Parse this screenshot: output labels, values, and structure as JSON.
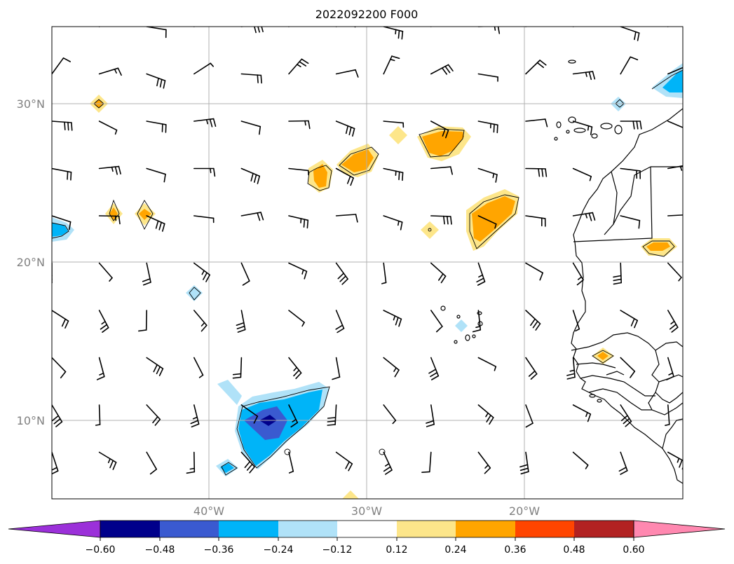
{
  "map": {
    "title": "2022092200 F000",
    "lat_labels": [
      "30°N",
      "20°N",
      "10°N"
    ],
    "lon_labels": [
      "40°W",
      "30°W",
      "20°W"
    ],
    "colors": {
      "grid": "#b0b0b0",
      "coast": "#000000",
      "barb": "#000000"
    }
  },
  "colorbar": {
    "tick_labels": [
      "−0.60",
      "−0.48",
      "−0.36",
      "−0.24",
      "−0.12",
      "0.12",
      "0.24",
      "0.36",
      "0.48",
      "0.60"
    ],
    "colors": [
      "#9b30d9",
      "#00008b",
      "#3a5ad0",
      "#00b4f8",
      "#b0e2f8",
      "#ffffff",
      "#fde68a",
      "#ffa500",
      "#ff4500",
      "#b22222",
      "#ff88b0"
    ]
  }
}
